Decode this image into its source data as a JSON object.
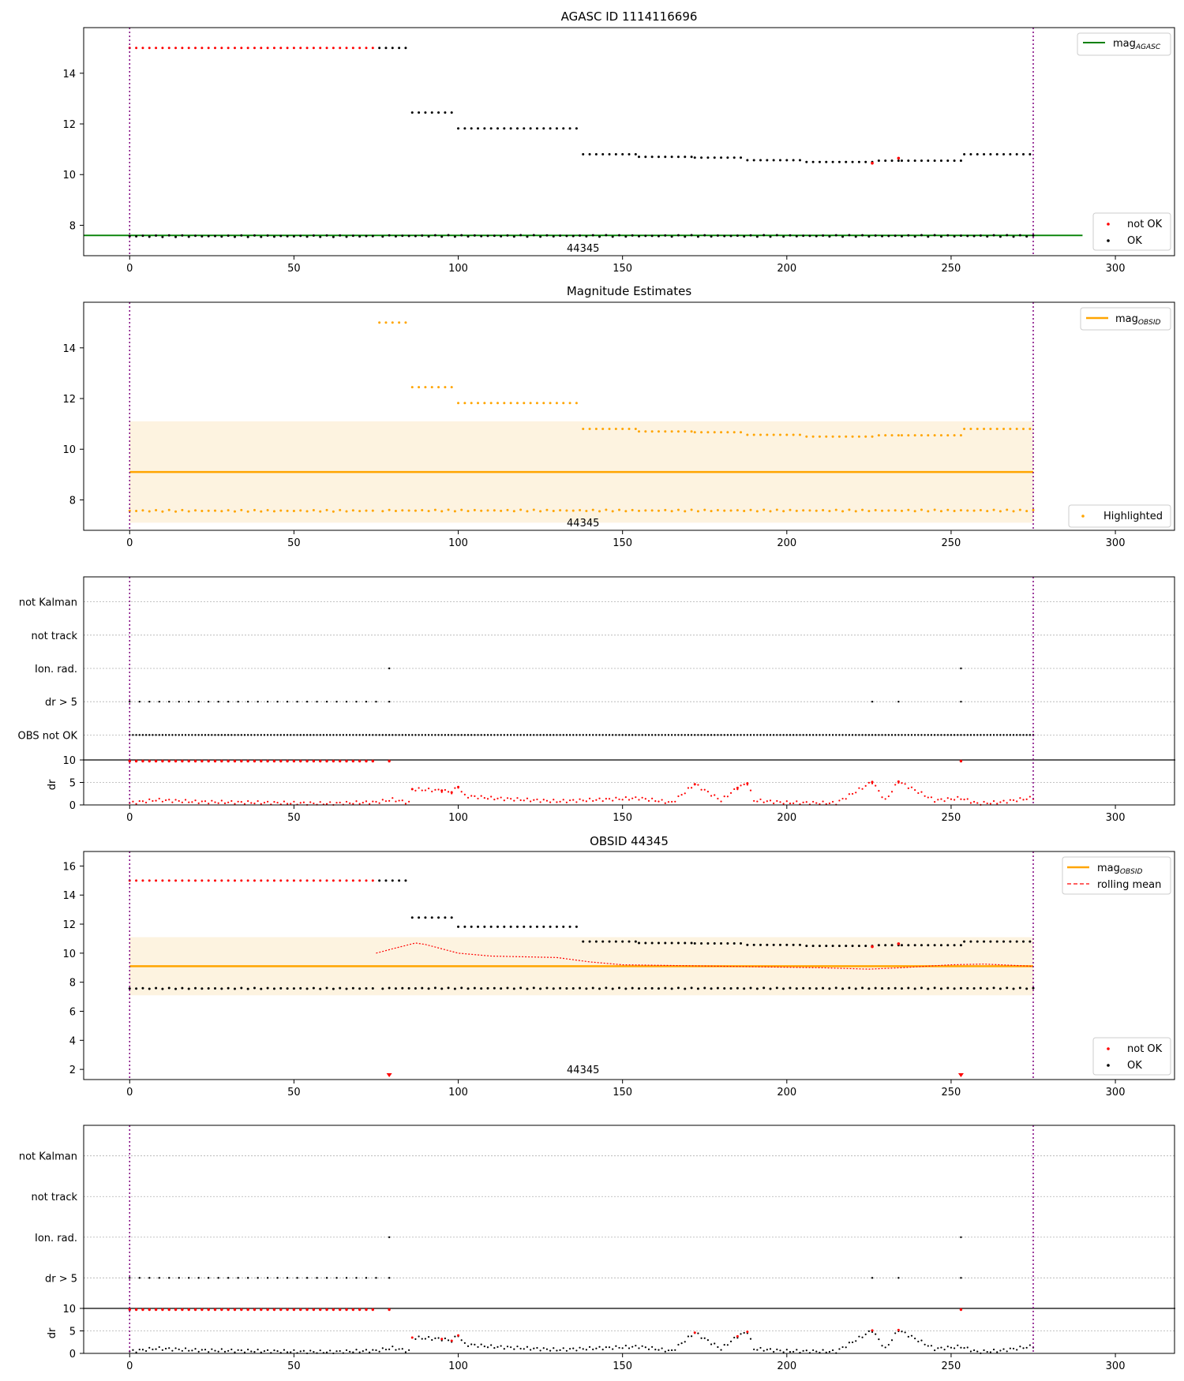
{
  "chart_data": [
    {
      "type": "scatter",
      "title": "AGASC ID 1114116696",
      "xlabel": "",
      "ylabel": "",
      "xlim": [
        -14,
        318
      ],
      "ylim": [
        6.8,
        15.8
      ],
      "xticks": [
        0,
        50,
        100,
        150,
        200,
        250,
        300
      ],
      "yticks": [
        8,
        10,
        12,
        14
      ],
      "vlines": [
        0,
        275
      ],
      "obsid_label": "44345",
      "legend_top": [
        "mag_AGASC"
      ],
      "legend_bottom": [
        "not OK",
        "OK"
      ],
      "series": [
        {
          "name": "mag_AGASC",
          "kind": "hline",
          "y": 7.6,
          "x": [
            -14,
            290
          ]
        },
        {
          "name": "not OK",
          "x_step": 2,
          "segments": [
            [
              0,
              75,
              15.0,
              0
            ]
          ],
          "points": [
            [
              226,
              10.45
            ],
            [
              234,
              10.65
            ]
          ]
        },
        {
          "name": "OK",
          "x_step": 2,
          "segments": [
            [
              0,
              75,
              7.57,
              0.03
            ],
            [
              76,
              85,
              15.0,
              0
            ],
            [
              86,
              99,
              12.45,
              0
            ],
            [
              100,
              137,
              11.82,
              0
            ],
            [
              77,
              275,
              7.58,
              0.03
            ],
            [
              138,
              154,
              10.8,
              0
            ],
            [
              155,
              171,
              10.7,
              0
            ],
            [
              172,
              187,
              10.67,
              0
            ],
            [
              188,
              205,
              10.57,
              0
            ],
            [
              206,
              227,
              10.5,
              0
            ],
            [
              228,
              234,
              10.55,
              0
            ],
            [
              235,
              253,
              10.55,
              0
            ],
            [
              254,
              275,
              10.8,
              0
            ]
          ]
        }
      ]
    },
    {
      "type": "scatter",
      "title": "Magnitude Estimates",
      "xlim": [
        -14,
        318
      ],
      "ylim": [
        6.8,
        15.8
      ],
      "xticks": [
        0,
        50,
        100,
        150,
        200,
        250,
        300
      ],
      "yticks": [
        8,
        10,
        12,
        14
      ],
      "vlines": [
        0,
        275
      ],
      "obsid_label": "44345",
      "band": [
        7.1,
        11.1
      ],
      "mag_obsid": 9.1,
      "legend_top": [
        "mag_OBSID"
      ],
      "legend_bottom": [
        "Highlighted"
      ],
      "series": [
        {
          "name": "Highlighted",
          "x_step": 2,
          "segments": [
            [
              0,
              75,
              7.57,
              0.03
            ],
            [
              76,
              85,
              15.0,
              0
            ],
            [
              86,
              99,
              12.45,
              0
            ],
            [
              100,
              137,
              11.82,
              0
            ],
            [
              77,
              275,
              7.58,
              0.03
            ],
            [
              138,
              154,
              10.8,
              0
            ],
            [
              155,
              171,
              10.7,
              0
            ],
            [
              172,
              187,
              10.67,
              0
            ],
            [
              188,
              205,
              10.57,
              0
            ],
            [
              206,
              227,
              10.5,
              0
            ],
            [
              228,
              234,
              10.55,
              0
            ],
            [
              235,
              253,
              10.55,
              0
            ],
            [
              254,
              275,
              10.8,
              0
            ]
          ]
        }
      ]
    },
    {
      "type": "scatter",
      "xlim": [
        -14,
        318
      ],
      "flag_labels": [
        "not Kalman",
        "not track",
        "Ion. rad.",
        "dr > 5",
        "OBS not OK"
      ],
      "flags": {
        "Ion. rad.": [
          79,
          253
        ],
        "dr > 5": {
          "range": [
            0,
            75
          ],
          "extra": [
            79,
            226,
            234,
            253
          ]
        },
        "OBS not OK": {
          "range": [
            0,
            275
          ]
        }
      },
      "dr_ylabel": "dr",
      "dr_ylim": [
        0,
        10
      ],
      "dr_yticks": [
        0,
        5,
        10
      ],
      "xticks": [
        0,
        50,
        100,
        150,
        200,
        250,
        300
      ],
      "vlines": [
        0,
        275
      ],
      "dr_clipped": {
        "range": [
          0,
          75
        ],
        "extra": [
          79,
          253
        ]
      },
      "dr_values": [
        [
          0,
          0.4
        ],
        [
          8,
          1.1
        ],
        [
          20,
          0.7
        ],
        [
          40,
          0.5
        ],
        [
          60,
          0.3
        ],
        [
          75,
          0.6
        ],
        [
          80,
          1.2
        ],
        [
          85,
          0.5
        ],
        [
          86,
          3.5
        ],
        [
          95,
          3.2
        ],
        [
          98,
          2.8
        ],
        [
          100,
          4.0
        ],
        [
          102,
          2.0
        ],
        [
          110,
          1.5
        ],
        [
          130,
          0.8
        ],
        [
          155,
          1.5
        ],
        [
          165,
          0.5
        ],
        [
          172,
          4.6
        ],
        [
          180,
          1.0
        ],
        [
          185,
          3.8
        ],
        [
          188,
          4.8
        ],
        [
          190,
          1.0
        ],
        [
          200,
          0.5
        ],
        [
          215,
          0.4
        ],
        [
          226,
          5.1
        ],
        [
          230,
          1.0
        ],
        [
          234,
          5.2
        ],
        [
          245,
          1.0
        ],
        [
          253,
          1.5
        ],
        [
          258,
          0.3
        ],
        [
          265,
          0.6
        ],
        [
          275,
          1.6
        ]
      ],
      "dr_color": "#ff0000"
    },
    {
      "type": "scatter",
      "title": "OBSID 44345",
      "xlim": [
        -14,
        318
      ],
      "ylim": [
        1.3,
        17.0
      ],
      "xticks": [
        0,
        50,
        100,
        150,
        200,
        250,
        300
      ],
      "yticks": [
        2,
        4,
        6,
        8,
        10,
        12,
        14,
        16
      ],
      "vlines": [
        0,
        275
      ],
      "obsid_label": "44345",
      "band": [
        7.1,
        11.1
      ],
      "mag_obsid": 9.1,
      "legend_top": [
        "mag_OBSID",
        "rolling mean"
      ],
      "legend_bottom": [
        "not OK",
        "OK"
      ],
      "rolling_mean": [
        [
          75,
          10.0
        ],
        [
          80,
          10.3
        ],
        [
          87,
          10.7
        ],
        [
          90,
          10.6
        ],
        [
          100,
          10.0
        ],
        [
          110,
          9.8
        ],
        [
          130,
          9.7
        ],
        [
          140,
          9.4
        ],
        [
          150,
          9.2
        ],
        [
          180,
          9.1
        ],
        [
          210,
          9.0
        ],
        [
          225,
          8.9
        ],
        [
          235,
          9.0
        ],
        [
          250,
          9.2
        ],
        [
          260,
          9.25
        ],
        [
          275,
          9.1
        ]
      ],
      "series": [
        {
          "name": "not OK",
          "x_step": 2,
          "segments": [
            [
              0,
              75,
              15.0,
              0
            ]
          ],
          "points": [
            [
              226,
              10.45
            ],
            [
              234,
              10.65
            ]
          ],
          "clipped": [
            79,
            253
          ]
        },
        {
          "name": "OK",
          "x_step": 2,
          "segments": [
            [
              0,
              75,
              7.57,
              0.03
            ],
            [
              76,
              85,
              15.0,
              0
            ],
            [
              86,
              99,
              12.45,
              0
            ],
            [
              100,
              137,
              11.82,
              0
            ],
            [
              77,
              275,
              7.58,
              0.03
            ],
            [
              138,
              154,
              10.8,
              0
            ],
            [
              155,
              171,
              10.7,
              0
            ],
            [
              172,
              187,
              10.67,
              0
            ],
            [
              188,
              205,
              10.57,
              0
            ],
            [
              206,
              227,
              10.5,
              0
            ],
            [
              228,
              234,
              10.55,
              0
            ],
            [
              235,
              253,
              10.55,
              0
            ],
            [
              254,
              275,
              10.8,
              0
            ]
          ]
        }
      ]
    },
    {
      "type": "scatter",
      "xlim": [
        -14,
        318
      ],
      "flag_labels": [
        "not Kalman",
        "not track",
        "Ion. rad.",
        "dr > 5"
      ],
      "flags": {
        "Ion. rad.": [
          79,
          253
        ],
        "dr > 5": {
          "range": [
            0,
            75
          ],
          "extra": [
            79,
            226,
            234,
            253
          ]
        }
      },
      "dr_ylabel": "dr",
      "dr_ylim": [
        0,
        10
      ],
      "dr_yticks": [
        0,
        5,
        10
      ],
      "xticks": [
        0,
        50,
        100,
        150,
        200,
        250,
        300
      ],
      "vlines": [
        0,
        275
      ],
      "dr_clipped": {
        "range": [
          0,
          75
        ],
        "extra": [
          79,
          253
        ]
      },
      "dr_values": [
        [
          0,
          0.4
        ],
        [
          8,
          1.1
        ],
        [
          20,
          0.7
        ],
        [
          40,
          0.5
        ],
        [
          60,
          0.3
        ],
        [
          75,
          0.6
        ],
        [
          80,
          1.2
        ],
        [
          85,
          0.5
        ],
        [
          86,
          3.5
        ],
        [
          95,
          3.2
        ],
        [
          98,
          2.8
        ],
        [
          100,
          4.0
        ],
        [
          102,
          2.0
        ],
        [
          110,
          1.5
        ],
        [
          130,
          0.8
        ],
        [
          155,
          1.5
        ],
        [
          165,
          0.5
        ],
        [
          172,
          4.6
        ],
        [
          180,
          1.0
        ],
        [
          185,
          3.8
        ],
        [
          188,
          4.8
        ],
        [
          190,
          1.0
        ],
        [
          200,
          0.5
        ],
        [
          215,
          0.4
        ],
        [
          226,
          5.1
        ],
        [
          230,
          1.0
        ],
        [
          234,
          5.2
        ],
        [
          245,
          1.0
        ],
        [
          253,
          1.5
        ],
        [
          258,
          0.3
        ],
        [
          265,
          0.6
        ],
        [
          275,
          1.6
        ]
      ],
      "dr_color": "#000000",
      "dr_red_points": [
        86,
        95,
        98,
        100,
        172,
        185,
        188,
        226,
        234
      ]
    }
  ],
  "colors": {
    "not_ok": "#ff0000",
    "ok": "#000000",
    "agasc_line": "#008000",
    "obsid_line": "#ffa500",
    "band": "#fdf3e0",
    "vline": "#800080",
    "rolling": "#ff0000",
    "grid": "#b0b0b0"
  }
}
